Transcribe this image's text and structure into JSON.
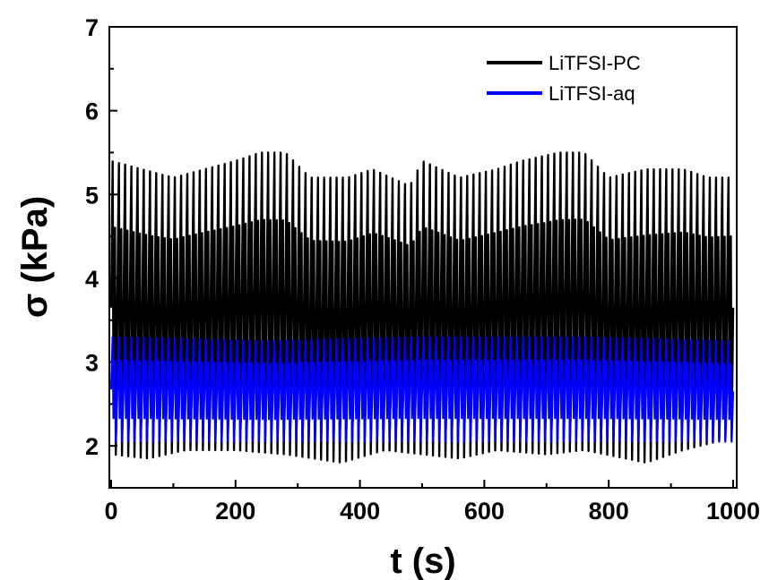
{
  "chart_data": {
    "type": "line",
    "xlabel": "t (s)",
    "ylabel": "σ (kPa)",
    "xlim": [
      0,
      1000
    ],
    "ylim": [
      1.5,
      7
    ],
    "xticks": [
      "0",
      "200",
      "400",
      "600",
      "800",
      "1000"
    ],
    "yticks": [
      "2",
      "3",
      "4",
      "5",
      "6",
      "7"
    ],
    "grid": false,
    "legend_position": "top-right",
    "series": [
      {
        "name": "LiTFSI-PC",
        "color": "#000000",
        "period_s": 10,
        "max_envelope": {
          "x": [
            0,
            50,
            100,
            150,
            200,
            240,
            280,
            320,
            380,
            420,
            480,
            500,
            560,
            620,
            660,
            720,
            760,
            800,
            860,
            920,
            960,
            1000
          ],
          "y": [
            5.4,
            5.3,
            5.2,
            5.3,
            5.4,
            5.5,
            5.5,
            5.2,
            5.2,
            5.3,
            5.1,
            5.4,
            5.2,
            5.3,
            5.4,
            5.5,
            5.5,
            5.2,
            5.3,
            5.3,
            5.2,
            5.2
          ]
        },
        "min_envelope": {
          "x": [
            0,
            60,
            120,
            200,
            280,
            370,
            440,
            500,
            560,
            620,
            700,
            760,
            860,
            920,
            1000
          ],
          "y": [
            1.9,
            1.85,
            1.95,
            1.95,
            1.9,
            1.8,
            1.95,
            1.9,
            1.85,
            1.95,
            1.9,
            1.95,
            1.8,
            1.95,
            2.1
          ]
        }
      },
      {
        "name": "LiTFSI-aq",
        "color": "#0000ff",
        "period_s": 10,
        "max_envelope": {
          "x": [
            0,
            250,
            500,
            750,
            1000
          ],
          "y": [
            3.3,
            3.25,
            3.3,
            3.3,
            3.25
          ]
        },
        "min_envelope": {
          "x": [
            0,
            250,
            500,
            750,
            1000
          ],
          "y": [
            2.05,
            2.05,
            2.05,
            2.05,
            2.05
          ]
        }
      }
    ]
  }
}
